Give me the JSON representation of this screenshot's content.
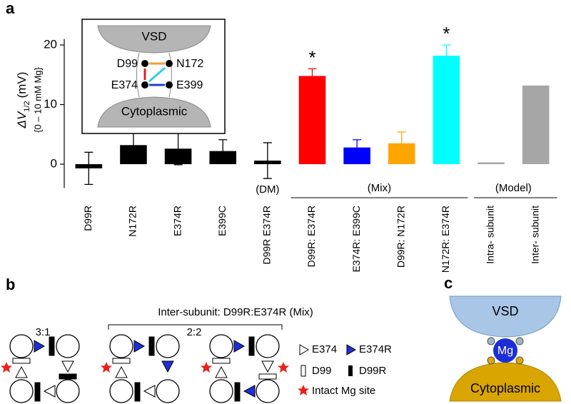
{
  "panel_labels": [
    "a",
    "b",
    "c"
  ],
  "chart_data": {
    "type": "bar",
    "ylabel": "ΔV",
    "ylabel_sub": "1/2",
    "ylabel_unit": "(mV)",
    "ylabel_note": "{0 – 10 mM Mg}",
    "categories": [
      "D99R",
      "N172R",
      "E374R",
      "E399C",
      "D99R E374R",
      "D99R: E374R",
      "E374R: E399C",
      "D99R: N172R",
      "N172R: E374R",
      "Intra- subunit",
      "Inter- subunit"
    ],
    "values": [
      -0.7,
      3.2,
      2.6,
      2.2,
      0.6,
      14.8,
      2.8,
      3.5,
      18.2,
      0.3,
      13.2
    ],
    "errors": [
      2.7,
      2.4,
      2.7,
      1.9,
      3.0,
      1.2,
      1.3,
      1.9,
      1.8,
      null,
      null
    ],
    "colors": [
      "#000000",
      "#000000",
      "#000000",
      "#000000",
      "#000000",
      "#ff0000",
      "#0000ff",
      "#ffa500",
      "#00ffff",
      "#a6a6a6",
      "#a6a6a6"
    ],
    "ylim": [
      -4,
      21
    ],
    "yticks": [
      0,
      10,
      20
    ],
    "grid": false,
    "asterisks": [
      "*",
      "*"
    ],
    "groups": [
      "(DM)",
      "(Mix)",
      "(Model)"
    ],
    "inset": {
      "top": "VSD",
      "bottom": "Cytoplasmic",
      "sites": [
        "D99",
        "N172",
        "E374",
        "E399"
      ]
    }
  },
  "panel_b": {
    "title": "Inter-subunit: D99R:E374R (Mix)",
    "ratios": [
      "3:1",
      "2:2"
    ],
    "legend": [
      "E374",
      "E374R",
      "D99",
      "D99R",
      "Intact Mg site"
    ]
  },
  "panel_c": {
    "top": "VSD",
    "ion": "Mg",
    "bottom": "Cytoplasmic"
  }
}
